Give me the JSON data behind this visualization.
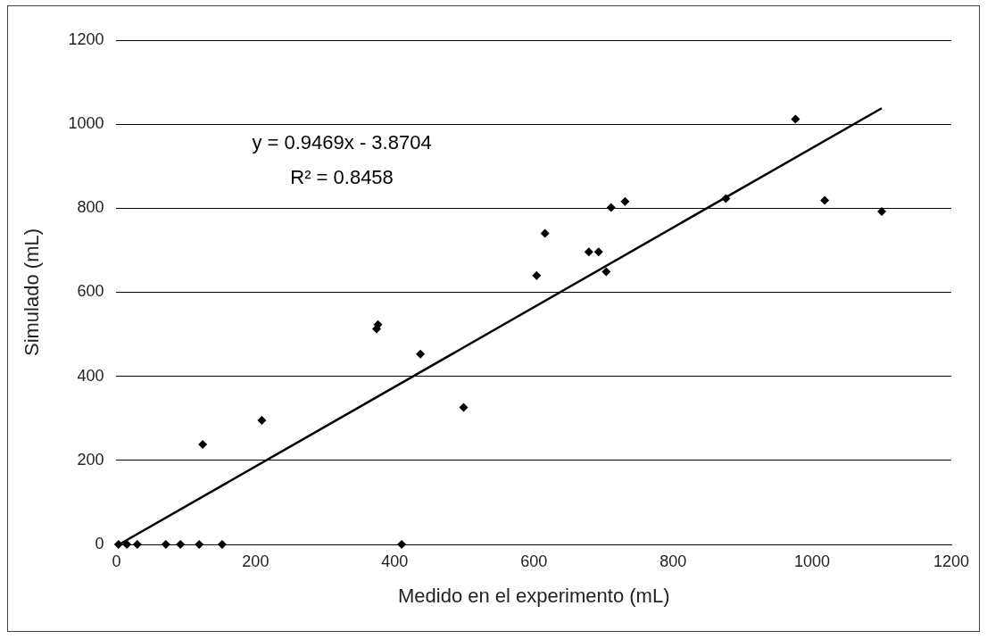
{
  "chart_data": {
    "type": "scatter",
    "xlabel": "Medido en el experimento (mL)",
    "ylabel": "Simulado (mL)",
    "xlim": [
      0,
      1200
    ],
    "xticks": [
      0,
      200,
      400,
      600,
      800,
      1000,
      1200
    ],
    "ylim": [
      0,
      1200
    ],
    "yticks": [
      0,
      200,
      400,
      600,
      800,
      1000,
      1200
    ],
    "grid": "y",
    "legend": false,
    "marker": "diamond",
    "annotations": [
      "y = 0.9469x - 3.8704",
      "R² = 0.8458"
    ],
    "series": [
      {
        "color": "#000000",
        "x": [
          3,
          15,
          30,
          71,
          92,
          119,
          152,
          410,
          124,
          209,
          374,
          376,
          437,
          499,
          604,
          616,
          679,
          693,
          704,
          711,
          731,
          876,
          976,
          1018,
          1100
        ],
        "values": [
          0,
          0,
          0,
          0,
          0,
          0,
          0,
          0,
          238,
          295,
          513,
          523,
          453,
          326,
          640,
          740,
          696,
          696,
          649,
          802,
          816,
          823,
          1012,
          819,
          792
        ]
      },
      {
        "type": "line",
        "marker": "none",
        "color": "#000000",
        "x": [
          4,
          1100
        ],
        "values": [
          0,
          1038
        ]
      }
    ]
  }
}
